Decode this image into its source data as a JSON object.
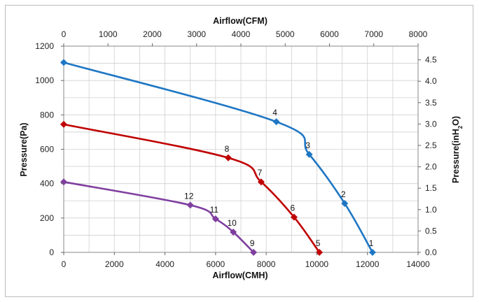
{
  "chart_data": {
    "type": "line",
    "x_bottom": {
      "label": "Airflow(CMH)",
      "range": [
        0,
        14000
      ],
      "ticks": [
        0,
        2000,
        4000,
        6000,
        8000,
        10000,
        12000,
        14000
      ]
    },
    "x_top": {
      "label": "Airflow(CFM)",
      "range": [
        0,
        8000
      ],
      "ticks": [
        0,
        1000,
        2000,
        3000,
        4000,
        5000,
        6000,
        7000,
        8000
      ]
    },
    "y_left": {
      "label": "Pressure(Pa)",
      "range": [
        0,
        1200
      ],
      "ticks": [
        0,
        200,
        400,
        600,
        800,
        1000,
        1200
      ]
    },
    "y_right": {
      "label_main": "Pressure(inH",
      "label_sub": "2",
      "label_end": "O)",
      "ticks": [
        "0.0",
        "0.5",
        "1.0",
        "1.5",
        "2.0",
        "2.5",
        "3.0",
        "3.5",
        "4.0",
        "4.5"
      ]
    },
    "grid": true,
    "series": [
      {
        "color": "#1f77c4",
        "points": [
          {
            "x": 0,
            "y": 1105,
            "label": ""
          },
          {
            "x": 8400,
            "y": 760,
            "label": "4"
          },
          {
            "x": 9700,
            "y": 570,
            "label": "3"
          },
          {
            "x": 11100,
            "y": 285,
            "label": "2"
          },
          {
            "x": 12200,
            "y": 0,
            "label": "1"
          }
        ]
      },
      {
        "color": "#c00000",
        "points": [
          {
            "x": 0,
            "y": 745,
            "label": ""
          },
          {
            "x": 6500,
            "y": 550,
            "label": "8"
          },
          {
            "x": 7800,
            "y": 410,
            "label": "7"
          },
          {
            "x": 9100,
            "y": 205,
            "label": "6"
          },
          {
            "x": 10100,
            "y": 0,
            "label": "5"
          }
        ]
      },
      {
        "color": "#7f3f9f",
        "points": [
          {
            "x": 0,
            "y": 410,
            "label": ""
          },
          {
            "x": 5000,
            "y": 275,
            "label": "12"
          },
          {
            "x": 6000,
            "y": 195,
            "label": "11"
          },
          {
            "x": 6700,
            "y": 118,
            "label": "10"
          },
          {
            "x": 7500,
            "y": 0,
            "label": "9"
          }
        ]
      }
    ]
  }
}
